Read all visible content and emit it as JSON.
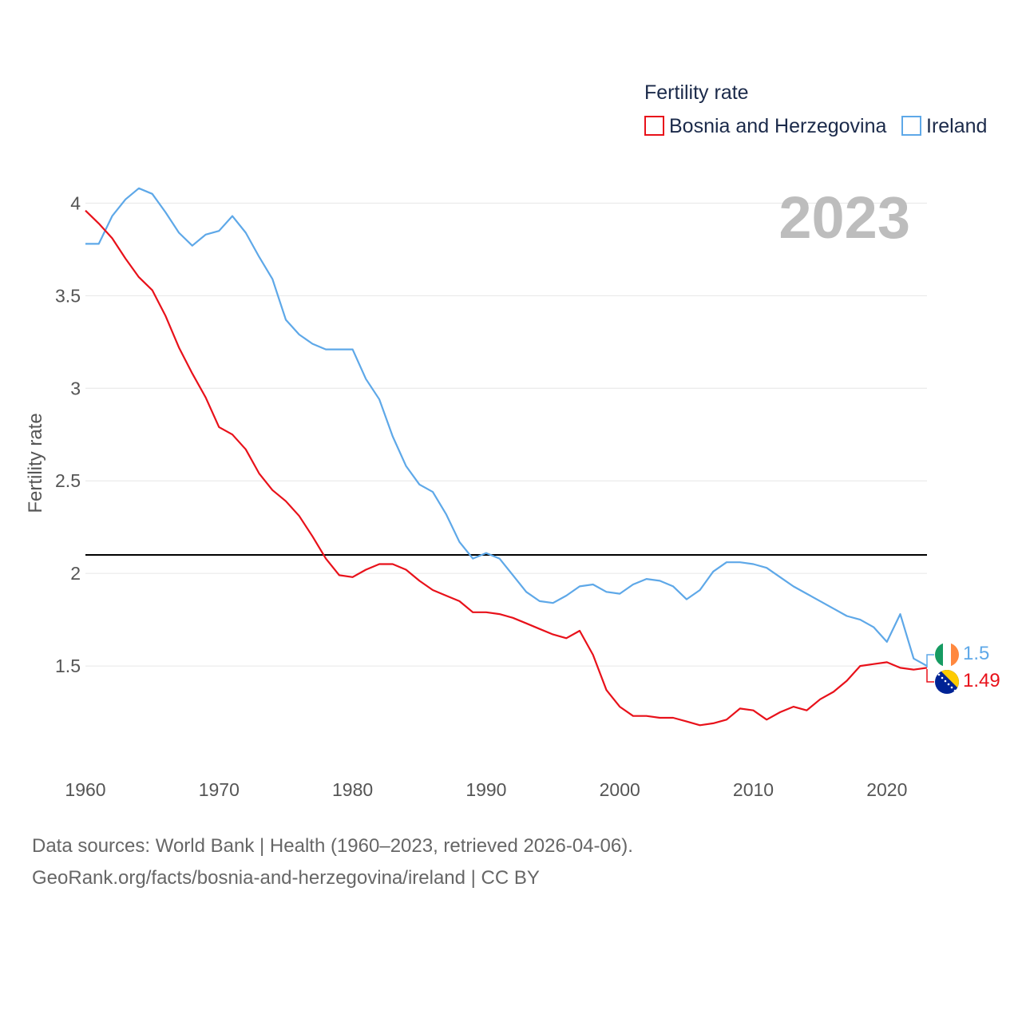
{
  "chart_data": {
    "type": "line",
    "legend_title": "Fertility rate",
    "ylabel": "Fertility rate",
    "year_label": "2023",
    "x": [
      1960,
      1961,
      1962,
      1963,
      1964,
      1965,
      1966,
      1967,
      1968,
      1969,
      1970,
      1971,
      1972,
      1973,
      1974,
      1975,
      1976,
      1977,
      1978,
      1979,
      1980,
      1981,
      1982,
      1983,
      1984,
      1985,
      1986,
      1987,
      1988,
      1989,
      1990,
      1991,
      1992,
      1993,
      1994,
      1995,
      1996,
      1997,
      1998,
      1999,
      2000,
      2001,
      2002,
      2003,
      2004,
      2005,
      2006,
      2007,
      2008,
      2009,
      2010,
      2011,
      2012,
      2013,
      2014,
      2015,
      2016,
      2017,
      2018,
      2019,
      2020,
      2021,
      2022,
      2023
    ],
    "xlim": [
      1960,
      2023
    ],
    "ylim": [
      1.0,
      4.2
    ],
    "xticks": [
      1960,
      1970,
      1980,
      1990,
      2000,
      2010,
      2020
    ],
    "yticks": [
      1.5,
      2,
      2.5,
      3,
      3.5,
      4
    ],
    "xtick_labels": [
      "1960",
      "1970",
      "1980",
      "1990",
      "2000",
      "2010",
      "2020"
    ],
    "ytick_labels": [
      "1.5",
      "2",
      "2.5",
      "3",
      "3.5",
      "4"
    ],
    "reference_line": {
      "y": 2.1,
      "color": "#000000"
    },
    "series": [
      {
        "name": "Bosnia and Herzegovina",
        "color": "#e8111a",
        "end_label": "1.49",
        "flag": "bosnia-flag",
        "values": [
          3.96,
          3.89,
          3.81,
          3.7,
          3.6,
          3.53,
          3.39,
          3.22,
          3.08,
          2.95,
          2.79,
          2.75,
          2.67,
          2.54,
          2.45,
          2.39,
          2.31,
          2.2,
          2.08,
          1.99,
          1.98,
          2.02,
          2.05,
          2.05,
          2.02,
          1.96,
          1.91,
          1.88,
          1.85,
          1.79,
          1.79,
          1.78,
          1.76,
          1.73,
          1.7,
          1.67,
          1.65,
          1.69,
          1.56,
          1.37,
          1.28,
          1.23,
          1.23,
          1.22,
          1.22,
          1.2,
          1.18,
          1.19,
          1.21,
          1.27,
          1.26,
          1.21,
          1.25,
          1.28,
          1.26,
          1.32,
          1.36,
          1.42,
          1.5,
          1.51,
          1.52,
          1.49,
          1.48,
          1.49
        ]
      },
      {
        "name": "Ireland",
        "color": "#5ea8e8",
        "end_label": "1.5",
        "flag": "ireland-flag",
        "values": [
          3.78,
          3.78,
          3.93,
          4.02,
          4.08,
          4.05,
          3.95,
          3.84,
          3.77,
          3.83,
          3.85,
          3.93,
          3.84,
          3.71,
          3.59,
          3.37,
          3.29,
          3.24,
          3.21,
          3.21,
          3.21,
          3.05,
          2.94,
          2.74,
          2.58,
          2.48,
          2.44,
          2.32,
          2.17,
          2.08,
          2.11,
          2.08,
          1.99,
          1.9,
          1.85,
          1.84,
          1.88,
          1.93,
          1.94,
          1.9,
          1.89,
          1.94,
          1.97,
          1.96,
          1.93,
          1.86,
          1.91,
          2.01,
          2.06,
          2.06,
          2.05,
          2.03,
          1.98,
          1.93,
          1.89,
          1.85,
          1.81,
          1.77,
          1.75,
          1.71,
          1.63,
          1.78,
          1.54,
          1.5
        ]
      }
    ]
  },
  "footer": {
    "line1": "Data sources: World Bank | Health (1960–2023, retrieved 2026-04-06).",
    "line2": "GeoRank.org/facts/bosnia-and-herzegovina/ireland | CC BY"
  }
}
